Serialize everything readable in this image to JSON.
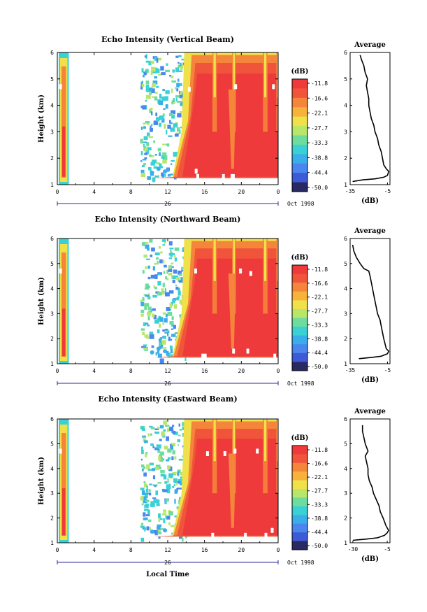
{
  "chart_data": [
    {
      "type": "heatmap",
      "title": "Echo Intensity (Vertical Beam)",
      "ylabel": "Height (km)",
      "x_ticks": [
        "0",
        "4",
        "8",
        "12",
        "16",
        "20",
        "0"
      ],
      "y_ticks": [
        "1",
        "2",
        "3",
        "4",
        "5",
        "6"
      ],
      "xlim": [
        0,
        24
      ],
      "ylim": [
        1,
        6
      ],
      "date_label": "26",
      "date_suffix": "Oct 1998",
      "colorbar_unit": "(dB)",
      "colorbar_ticks": [
        "-11.8",
        "-16.6",
        "-22.1",
        "-27.7",
        "-33.3",
        "-38.8",
        "-44.4",
        "-50.0"
      ],
      "profile": {
        "title": "Average",
        "xlabel": "(dB)",
        "x_ticks": [
          "-35",
          "-5"
        ],
        "y_ticks": [
          "1",
          "2",
          "3",
          "4",
          "5",
          "6"
        ],
        "xlim": [
          -35,
          -3
        ],
        "ylim": [
          1,
          6
        ],
        "points": [
          [
            -33,
            1.12
          ],
          [
            -25,
            1.18
          ],
          [
            -15,
            1.22
          ],
          [
            -8,
            1.28
          ],
          [
            -5,
            1.35
          ],
          [
            -4,
            1.5
          ],
          [
            -6,
            1.6
          ],
          [
            -8,
            1.75
          ],
          [
            -9,
            2
          ],
          [
            -10,
            2.25
          ],
          [
            -12,
            2.5
          ],
          [
            -13,
            2.75
          ],
          [
            -15,
            3
          ],
          [
            -16,
            3.25
          ],
          [
            -18,
            3.5
          ],
          [
            -19,
            3.75
          ],
          [
            -20,
            4
          ],
          [
            -20,
            4.25
          ],
          [
            -21,
            4.5
          ],
          [
            -22,
            4.75
          ],
          [
            -21,
            5
          ],
          [
            -23,
            5.25
          ],
          [
            -24,
            5.5
          ],
          [
            -26,
            5.75
          ],
          [
            -27,
            5.9
          ]
        ]
      }
    },
    {
      "type": "heatmap",
      "title": "Echo Intensity (Northward Beam)",
      "ylabel": "Height (km)",
      "x_ticks": [
        "0",
        "4",
        "8",
        "12",
        "16",
        "20",
        "0"
      ],
      "y_ticks": [
        "1",
        "2",
        "3",
        "4",
        "5",
        "6"
      ],
      "xlim": [
        0,
        24
      ],
      "ylim": [
        1,
        6
      ],
      "date_label": "26",
      "date_suffix": "Oct 1998",
      "colorbar_unit": "(dB)",
      "colorbar_ticks": [
        "-11.8",
        "-16.6",
        "-22.1",
        "-27.7",
        "-33.3",
        "-38.8",
        "-44.4",
        "-50.0"
      ],
      "profile": {
        "title": "Average",
        "xlabel": "(dB)",
        "x_ticks": [
          "-35",
          "-5"
        ],
        "y_ticks": [
          "1",
          "2",
          "3",
          "4",
          "5",
          "6"
        ],
        "xlim": [
          -35,
          -3
        ],
        "ylim": [
          1,
          6
        ],
        "points": [
          [
            -28,
            1.2
          ],
          [
            -18,
            1.25
          ],
          [
            -10,
            1.3
          ],
          [
            -5,
            1.4
          ],
          [
            -4,
            1.5
          ],
          [
            -6,
            1.6
          ],
          [
            -7,
            1.8
          ],
          [
            -8,
            2
          ],
          [
            -9,
            2.25
          ],
          [
            -10,
            2.5
          ],
          [
            -11,
            2.75
          ],
          [
            -13,
            3
          ],
          [
            -14,
            3.25
          ],
          [
            -15,
            3.5
          ],
          [
            -16,
            3.75
          ],
          [
            -17,
            4
          ],
          [
            -18,
            4.25
          ],
          [
            -19,
            4.5
          ],
          [
            -20,
            4.7
          ],
          [
            -24,
            4.8
          ],
          [
            -27,
            5
          ],
          [
            -30,
            5.25
          ],
          [
            -32,
            5.5
          ],
          [
            -33,
            5.75
          ]
        ]
      }
    },
    {
      "type": "heatmap",
      "title": "Echo Intensity (Eastward Beam)",
      "ylabel": "Height (km)",
      "xlabel": "Local Time",
      "x_ticks": [
        "0",
        "4",
        "8",
        "12",
        "16",
        "20",
        "0"
      ],
      "y_ticks": [
        "1",
        "2",
        "3",
        "4",
        "5",
        "6"
      ],
      "xlim": [
        0,
        24
      ],
      "ylim": [
        1,
        6
      ],
      "date_label": "26",
      "date_suffix": "Oct 1998",
      "colorbar_unit": "(dB)",
      "colorbar_ticks": [
        "-11.8",
        "-16.6",
        "-22.1",
        "-27.7",
        "-33.3",
        "-38.8",
        "-44.4",
        "-50.0"
      ],
      "profile": {
        "title": "Average",
        "xlabel": "(dB)",
        "x_ticks": [
          "-30",
          "-5"
        ],
        "y_ticks": [
          "1",
          "2",
          "3",
          "4",
          "5",
          "6"
        ],
        "xlim": [
          -32,
          -3
        ],
        "ylim": [
          1,
          6
        ],
        "points": [
          [
            -30,
            1.1
          ],
          [
            -20,
            1.15
          ],
          [
            -12,
            1.2
          ],
          [
            -7,
            1.3
          ],
          [
            -5,
            1.4
          ],
          [
            -4,
            1.5
          ],
          [
            -6,
            1.7
          ],
          [
            -8,
            2
          ],
          [
            -10,
            2.25
          ],
          [
            -11,
            2.5
          ],
          [
            -13,
            2.75
          ],
          [
            -15,
            3
          ],
          [
            -16,
            3.25
          ],
          [
            -18,
            3.5
          ],
          [
            -19,
            3.75
          ],
          [
            -19,
            4
          ],
          [
            -20,
            4.25
          ],
          [
            -21,
            4.5
          ],
          [
            -19,
            4.7
          ],
          [
            -21,
            5
          ],
          [
            -22,
            5.25
          ],
          [
            -23,
            5.5
          ],
          [
            -23,
            5.75
          ]
        ]
      }
    }
  ],
  "colors": {
    "scale": [
      "#2a2a62",
      "#3d5bd6",
      "#4b86ee",
      "#3aaee8",
      "#3ad0d4",
      "#6ddc9c",
      "#b8e66a",
      "#f0e04a",
      "#f6b23a",
      "#f5853a",
      "#f0543a",
      "#ee3a3a"
    ],
    "frame": "#000000",
    "axis_blue": "#2a2a9a"
  }
}
